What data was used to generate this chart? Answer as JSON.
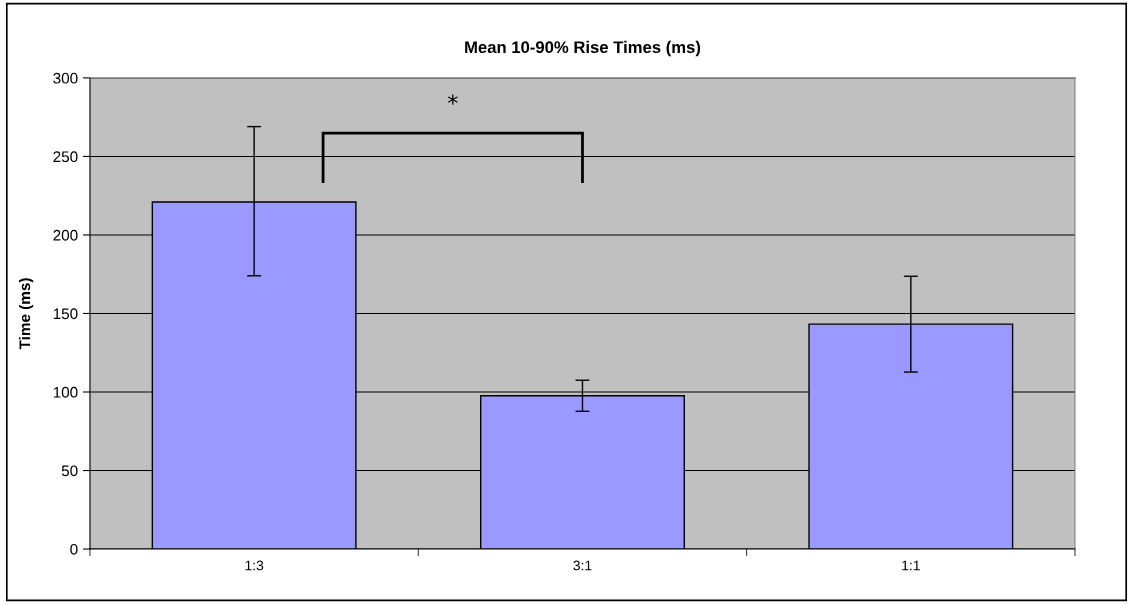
{
  "chart_data": {
    "type": "bar",
    "title": "Mean 10-90% Rise Times (ms)",
    "ylabel": "Time (ms)",
    "categories": [
      "1:3",
      "3:1",
      "1:1"
    ],
    "values": [
      221,
      97.6,
      143.2
    ],
    "errors": [
      [
        174,
        269
      ],
      [
        87.7,
        107.5
      ],
      [
        112.7,
        173.7
      ]
    ],
    "color": "#9999ff",
    "ylim": [
      0,
      300
    ],
    "yticks": [
      0,
      50,
      100,
      150,
      200,
      250,
      300
    ],
    "grid": "y",
    "annotations": [
      "*"
    ]
  }
}
